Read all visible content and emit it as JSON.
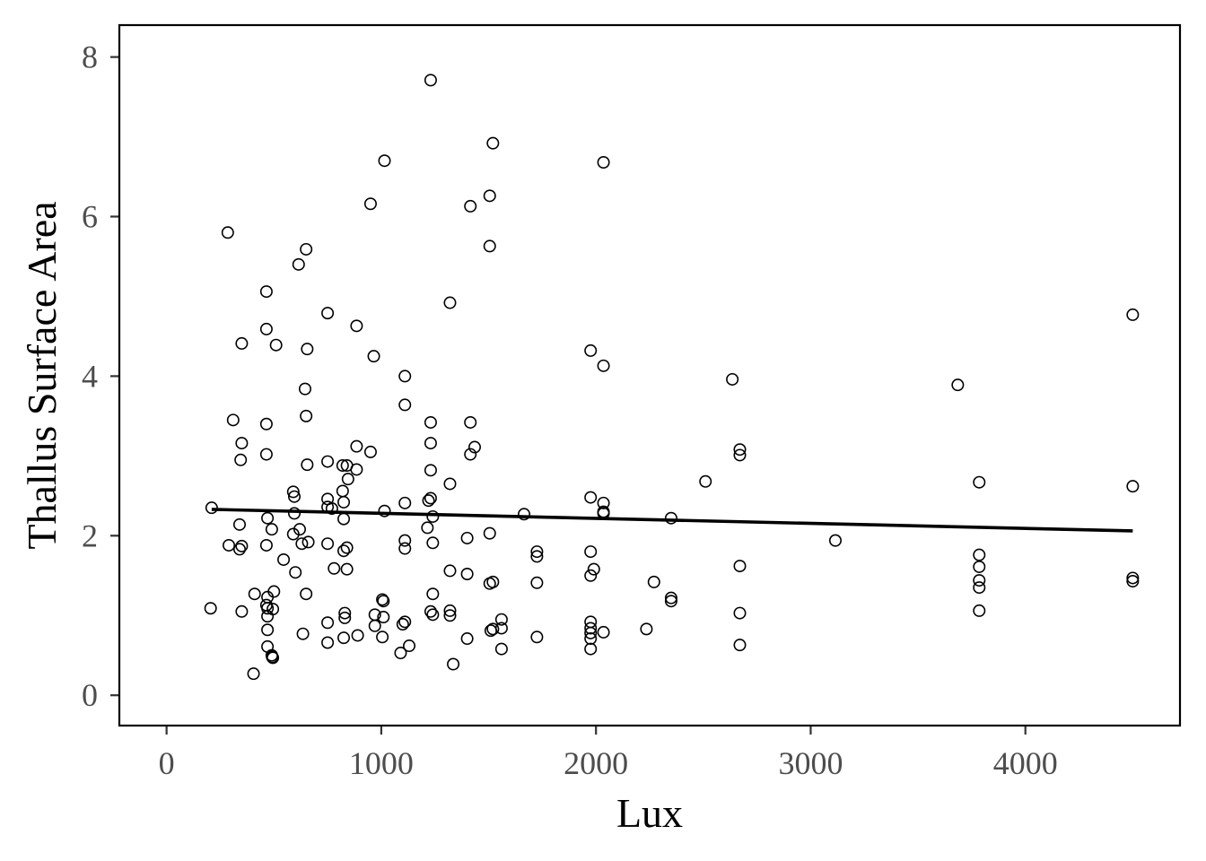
{
  "chart_data": {
    "type": "scatter",
    "title": "",
    "xlabel": "Lux",
    "ylabel": "Thallus Surface Area",
    "xlim": [
      -220,
      4720
    ],
    "ylim": [
      -0.38,
      8.4
    ],
    "x_ticks": [
      0,
      1000,
      2000,
      3000,
      4000
    ],
    "y_ticks": [
      0,
      2,
      4,
      6,
      8
    ],
    "grid": false,
    "legend": "none",
    "point_color": "#000000",
    "line_color": "#000000",
    "trend_line": {
      "x": [
        210,
        4500
      ],
      "y": [
        2.33,
        2.06
      ]
    },
    "points": [
      [
        210,
        2.35
      ],
      [
        205,
        1.09
      ],
      [
        285,
        5.8
      ],
      [
        310,
        3.45
      ],
      [
        290,
        1.88
      ],
      [
        350,
        4.41
      ],
      [
        350,
        3.16
      ],
      [
        345,
        2.95
      ],
      [
        340,
        2.14
      ],
      [
        350,
        1.87
      ],
      [
        340,
        1.83
      ],
      [
        350,
        1.05
      ],
      [
        405,
        0.27
      ],
      [
        410,
        1.27
      ],
      [
        465,
        5.06
      ],
      [
        465,
        4.59
      ],
      [
        465,
        3.4
      ],
      [
        465,
        3.02
      ],
      [
        470,
        2.22
      ],
      [
        465,
        1.88
      ],
      [
        470,
        1.23
      ],
      [
        465,
        1.13
      ],
      [
        470,
        1.09
      ],
      [
        470,
        0.99
      ],
      [
        470,
        0.82
      ],
      [
        470,
        0.61
      ],
      [
        490,
        0.5
      ],
      [
        492,
        0.48
      ],
      [
        495,
        0.47
      ],
      [
        490,
        2.08
      ],
      [
        495,
        1.08
      ],
      [
        500,
        1.3
      ],
      [
        510,
        4.39
      ],
      [
        545,
        1.7
      ],
      [
        590,
        2.55
      ],
      [
        595,
        2.49
      ],
      [
        595,
        2.28
      ],
      [
        590,
        2.02
      ],
      [
        600,
        1.54
      ],
      [
        615,
        5.4
      ],
      [
        620,
        2.08
      ],
      [
        630,
        1.9
      ],
      [
        635,
        0.77
      ],
      [
        650,
        5.59
      ],
      [
        645,
        3.84
      ],
      [
        655,
        4.34
      ],
      [
        650,
        3.5
      ],
      [
        655,
        2.89
      ],
      [
        650,
        1.27
      ],
      [
        660,
        1.92
      ],
      [
        750,
        4.79
      ],
      [
        750,
        2.93
      ],
      [
        750,
        2.46
      ],
      [
        750,
        2.36
      ],
      [
        750,
        1.9
      ],
      [
        750,
        0.91
      ],
      [
        750,
        0.66
      ],
      [
        770,
        2.34
      ],
      [
        780,
        1.59
      ],
      [
        820,
        2.88
      ],
      [
        820,
        2.56
      ],
      [
        825,
        2.42
      ],
      [
        825,
        2.21
      ],
      [
        825,
        1.81
      ],
      [
        830,
        1.03
      ],
      [
        830,
        0.97
      ],
      [
        825,
        0.72
      ],
      [
        840,
        2.88
      ],
      [
        845,
        2.71
      ],
      [
        840,
        1.85
      ],
      [
        840,
        1.58
      ],
      [
        885,
        4.63
      ],
      [
        885,
        3.12
      ],
      [
        885,
        2.83
      ],
      [
        890,
        0.75
      ],
      [
        950,
        6.16
      ],
      [
        950,
        3.05
      ],
      [
        965,
        4.25
      ],
      [
        970,
        1.01
      ],
      [
        970,
        0.87
      ],
      [
        1005,
        1.2
      ],
      [
        1010,
        1.18
      ],
      [
        1010,
        0.98
      ],
      [
        1005,
        0.73
      ],
      [
        1015,
        6.7
      ],
      [
        1015,
        2.31
      ],
      [
        1090,
        0.53
      ],
      [
        1100,
        0.89
      ],
      [
        1110,
        0.92
      ],
      [
        1110,
        4.0
      ],
      [
        1110,
        3.64
      ],
      [
        1110,
        2.41
      ],
      [
        1110,
        1.94
      ],
      [
        1110,
        1.84
      ],
      [
        1130,
        0.62
      ],
      [
        1215,
        2.1
      ],
      [
        1220,
        2.44
      ],
      [
        1230,
        7.71
      ],
      [
        1230,
        3.42
      ],
      [
        1230,
        3.16
      ],
      [
        1230,
        2.82
      ],
      [
        1230,
        2.47
      ],
      [
        1230,
        1.05
      ],
      [
        1240,
        1.27
      ],
      [
        1240,
        1.01
      ],
      [
        1240,
        1.91
      ],
      [
        1240,
        2.24
      ],
      [
        1320,
        4.92
      ],
      [
        1320,
        2.65
      ],
      [
        1320,
        1.56
      ],
      [
        1320,
        1.06
      ],
      [
        1320,
        1.0
      ],
      [
        1335,
        0.39
      ],
      [
        1400,
        1.97
      ],
      [
        1400,
        1.52
      ],
      [
        1400,
        0.71
      ],
      [
        1415,
        6.13
      ],
      [
        1415,
        3.42
      ],
      [
        1415,
        3.02
      ],
      [
        1435,
        3.11
      ],
      [
        1505,
        6.26
      ],
      [
        1505,
        5.63
      ],
      [
        1505,
        2.03
      ],
      [
        1505,
        1.4
      ],
      [
        1510,
        0.81
      ],
      [
        1520,
        6.92
      ],
      [
        1520,
        1.42
      ],
      [
        1520,
        0.83
      ],
      [
        1560,
        0.95
      ],
      [
        1560,
        0.84
      ],
      [
        1560,
        0.58
      ],
      [
        1665,
        2.27
      ],
      [
        1725,
        1.8
      ],
      [
        1725,
        1.74
      ],
      [
        1725,
        1.41
      ],
      [
        1725,
        0.73
      ],
      [
        1975,
        4.32
      ],
      [
        1975,
        2.48
      ],
      [
        1975,
        1.8
      ],
      [
        1975,
        1.5
      ],
      [
        1975,
        0.92
      ],
      [
        1975,
        0.84
      ],
      [
        1975,
        0.78
      ],
      [
        1975,
        0.71
      ],
      [
        1975,
        0.58
      ],
      [
        1990,
        1.58
      ],
      [
        2035,
        6.68
      ],
      [
        2035,
        4.13
      ],
      [
        2035,
        2.41
      ],
      [
        2035,
        2.3
      ],
      [
        2035,
        2.28
      ],
      [
        2035,
        0.79
      ],
      [
        2235,
        0.83
      ],
      [
        2270,
        1.42
      ],
      [
        2350,
        2.22
      ],
      [
        2350,
        1.22
      ],
      [
        2350,
        1.18
      ],
      [
        2510,
        2.68
      ],
      [
        2635,
        3.96
      ],
      [
        2670,
        3.08
      ],
      [
        2670,
        3.01
      ],
      [
        2670,
        1.62
      ],
      [
        2670,
        1.03
      ],
      [
        2670,
        0.63
      ],
      [
        3115,
        1.94
      ],
      [
        3685,
        3.89
      ],
      [
        3785,
        2.67
      ],
      [
        3785,
        1.76
      ],
      [
        3785,
        1.61
      ],
      [
        3785,
        1.44
      ],
      [
        3785,
        1.35
      ],
      [
        3785,
        1.06
      ],
      [
        4500,
        4.77
      ],
      [
        4500,
        2.62
      ],
      [
        4500,
        1.47
      ],
      [
        4500,
        1.43
      ]
    ]
  }
}
